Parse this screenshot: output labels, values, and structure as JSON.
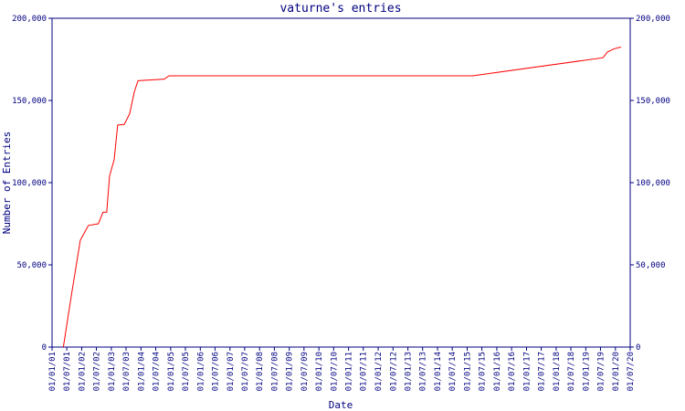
{
  "chart_data": {
    "type": "line",
    "title": "vaturne's entries",
    "xlabel": "Date",
    "ylabel": "Number of Entries",
    "x": [
      "2001-05-20",
      "2001-09-01",
      "2001-12-15",
      "2002-03-25",
      "2002-07-25",
      "2002-09-20",
      "2002-11-05",
      "2002-12-10",
      "2003-02-05",
      "2003-03-20",
      "2003-06-10",
      "2003-08-15",
      "2003-10-10",
      "2003-11-25",
      "2004-10-15",
      "2004-12-10",
      "2015-03-10",
      "2019-08-01",
      "2019-09-25",
      "2019-12-20",
      "2020-03-10"
    ],
    "values": [
      0,
      33000,
      65000,
      74000,
      75000,
      82000,
      82000,
      104000,
      114000,
      135000,
      135500,
      142000,
      155000,
      162000,
      163000,
      165000,
      165000,
      176000,
      179500,
      181500,
      182500
    ],
    "color": "#ff0000",
    "xlim": [
      "2001-01-01",
      "2020-07-01"
    ],
    "xticks": [
      {
        "value": "2001-01-01",
        "label": "01/01/01"
      },
      {
        "value": "2001-07-01",
        "label": "01/07/01"
      },
      {
        "value": "2002-01-01",
        "label": "01/01/02"
      },
      {
        "value": "2002-07-01",
        "label": "01/07/02"
      },
      {
        "value": "2003-01-01",
        "label": "01/01/03"
      },
      {
        "value": "2003-07-01",
        "label": "01/07/03"
      },
      {
        "value": "2004-01-01",
        "label": "01/01/04"
      },
      {
        "value": "2004-07-01",
        "label": "01/07/04"
      },
      {
        "value": "2005-01-01",
        "label": "01/01/05"
      },
      {
        "value": "2005-07-01",
        "label": "01/07/05"
      },
      {
        "value": "2006-01-01",
        "label": "01/01/06"
      },
      {
        "value": "2006-07-01",
        "label": "01/07/06"
      },
      {
        "value": "2007-01-01",
        "label": "01/01/07"
      },
      {
        "value": "2007-07-01",
        "label": "01/07/07"
      },
      {
        "value": "2008-01-01",
        "label": "01/01/08"
      },
      {
        "value": "2008-07-01",
        "label": "01/07/08"
      },
      {
        "value": "2009-01-01",
        "label": "01/01/09"
      },
      {
        "value": "2009-07-01",
        "label": "01/07/09"
      },
      {
        "value": "2010-01-01",
        "label": "01/01/10"
      },
      {
        "value": "2010-07-01",
        "label": "01/07/10"
      },
      {
        "value": "2011-01-01",
        "label": "01/01/11"
      },
      {
        "value": "2011-07-01",
        "label": "01/07/11"
      },
      {
        "value": "2012-01-01",
        "label": "01/01/12"
      },
      {
        "value": "2012-07-01",
        "label": "01/07/12"
      },
      {
        "value": "2013-01-01",
        "label": "01/01/13"
      },
      {
        "value": "2013-07-01",
        "label": "01/07/13"
      },
      {
        "value": "2014-01-01",
        "label": "01/01/14"
      },
      {
        "value": "2014-07-01",
        "label": "01/07/14"
      },
      {
        "value": "2015-01-01",
        "label": "01/01/15"
      },
      {
        "value": "2015-07-01",
        "label": "01/07/15"
      },
      {
        "value": "2016-01-01",
        "label": "01/01/16"
      },
      {
        "value": "2016-07-01",
        "label": "01/07/16"
      },
      {
        "value": "2017-01-01",
        "label": "01/01/17"
      },
      {
        "value": "2017-07-01",
        "label": "01/07/17"
      },
      {
        "value": "2018-01-01",
        "label": "01/01/18"
      },
      {
        "value": "2018-07-01",
        "label": "01/07/18"
      },
      {
        "value": "2019-01-01",
        "label": "01/01/19"
      },
      {
        "value": "2019-07-01",
        "label": "01/07/19"
      },
      {
        "value": "2020-01-01",
        "label": "01/01/20"
      },
      {
        "value": "2020-07-01",
        "label": "01/07/20"
      }
    ],
    "ylim": [
      0,
      200000
    ],
    "yticks": [
      0,
      {
        "value": 50000,
        "label": "50,000"
      },
      {
        "value": 100000,
        "label": "100,000"
      },
      {
        "value": 150000,
        "label": "150,000"
      },
      {
        "value": 200000,
        "label": "200,000"
      }
    ],
    "y2lim": [
      0,
      200000
    ],
    "y2ticks": [
      0,
      {
        "value": 50000,
        "label": "50,000"
      },
      {
        "value": 100000,
        "label": "100,000"
      },
      {
        "value": 150000,
        "label": "150,000"
      },
      {
        "value": 200000,
        "label": "200,000"
      }
    ]
  }
}
